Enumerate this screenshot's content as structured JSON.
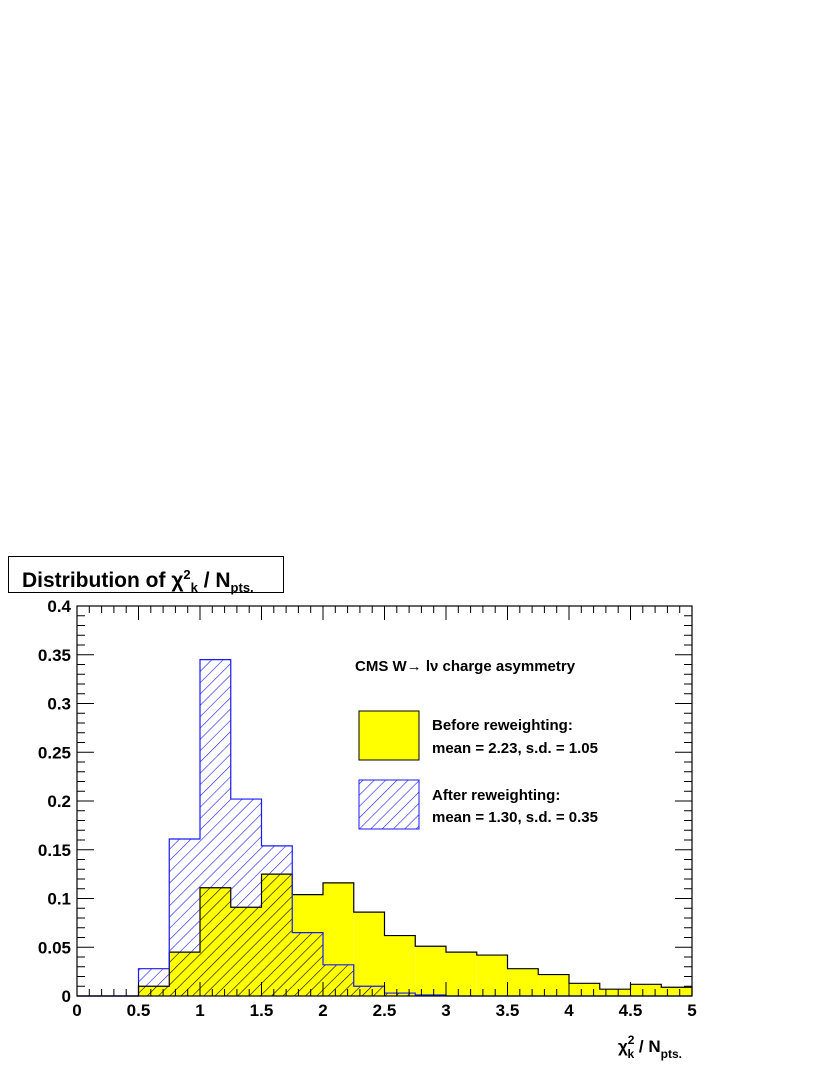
{
  "title": {
    "prefix": "Distribution of ",
    "symbol": "χ",
    "sup": "2",
    "sub": "k",
    "middle": " / N",
    "tail": "pts."
  },
  "chart_data": {
    "type": "histogram",
    "xlabel": {
      "symbol": "χ",
      "sup": "2",
      "sub": "k",
      "middle": " / N",
      "tail": "pts."
    },
    "xlim": [
      0,
      5
    ],
    "ylim": [
      0,
      0.4
    ],
    "x_ticks": [
      "0",
      "0.5",
      "1",
      "1.5",
      "2",
      "2.5",
      "3",
      "3.5",
      "4",
      "4.5",
      "5"
    ],
    "y_ticks": [
      "0",
      "0.05",
      "0.1",
      "0.15",
      "0.2",
      "0.25",
      "0.3",
      "0.35",
      "0.4"
    ],
    "bin_width": 0.25,
    "bin_edges_start": 0,
    "annotation": "CMS W→ lν charge asymmetry",
    "series": [
      {
        "name": "Before reweighting:",
        "stats": "mean = 2.23, s.d. = 1.05",
        "fill": "#ffff00",
        "style": "solid",
        "values": [
          0,
          0,
          0.01,
          0.045,
          0.111,
          0.091,
          0.125,
          0.104,
          0.116,
          0.086,
          0.062,
          0.051,
          0.045,
          0.042,
          0.028,
          0.022,
          0.013,
          0.007,
          0.012,
          0.009
        ]
      },
      {
        "name": "After reweighting:",
        "stats": "mean = 1.30, s.d. = 0.35",
        "fill": "#1a1aff",
        "style": "hatched",
        "values": [
          0,
          0,
          0.028,
          0.161,
          0.345,
          0.202,
          0.154,
          0.065,
          0.032,
          0.01,
          0.003,
          0.001,
          0,
          0,
          0,
          0,
          0,
          0,
          0,
          0
        ]
      }
    ],
    "grid": false,
    "legend_position": "top-right"
  }
}
